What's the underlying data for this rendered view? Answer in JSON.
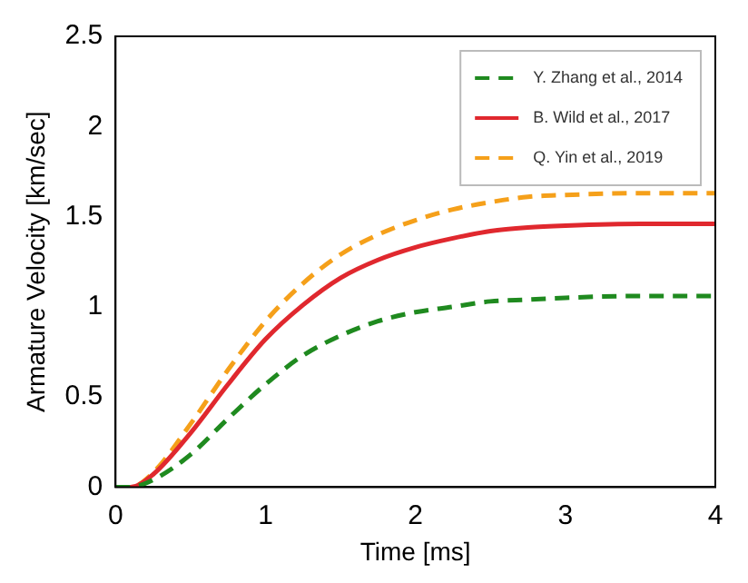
{
  "chart_data": {
    "type": "line",
    "xlabel": "Time [ms]",
    "ylabel": "Armature Velocity [km/sec]",
    "xlim": [
      0,
      4
    ],
    "xticks": [
      0,
      1,
      2,
      3,
      4
    ],
    "ylim": [
      0,
      2.5
    ],
    "yticks": [
      0,
      0.5,
      1,
      1.5,
      2,
      2.5
    ],
    "grid": false,
    "legend": "top right",
    "marker": "none",
    "x": [
      0,
      0.1,
      0.25,
      0.5,
      0.75,
      1,
      1.25,
      1.5,
      1.75,
      2,
      2.25,
      2.5,
      2.75,
      3,
      3.5,
      4
    ],
    "series": [
      {
        "name": "Y. Zhang et al., 2014",
        "color": "#1f8a1f",
        "line_style": "dashed",
        "values": [
          0,
          0,
          0.04,
          0.18,
          0.38,
          0.57,
          0.73,
          0.84,
          0.92,
          0.97,
          1.0,
          1.03,
          1.04,
          1.05,
          1.06,
          1.06
        ]
      },
      {
        "name": "B. Wild et al., 2017",
        "color": "#e0282e",
        "line_style": "solid",
        "values": [
          0,
          0,
          0.07,
          0.3,
          0.57,
          0.82,
          1.01,
          1.16,
          1.26,
          1.33,
          1.38,
          1.42,
          1.44,
          1.45,
          1.46,
          1.46
        ]
      },
      {
        "name": "Q. Yin et al., 2019",
        "color": "#f5a01a",
        "line_style": "dashed",
        "values": [
          0,
          0,
          0.08,
          0.35,
          0.65,
          0.92,
          1.13,
          1.29,
          1.4,
          1.48,
          1.54,
          1.58,
          1.61,
          1.62,
          1.63,
          1.63
        ]
      }
    ]
  }
}
